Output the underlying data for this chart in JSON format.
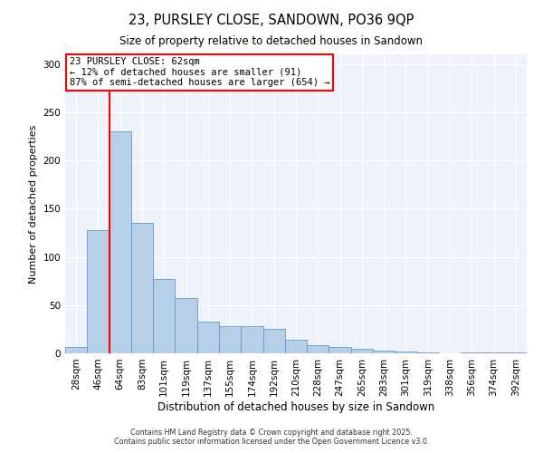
{
  "title_line1": "23, PURSLEY CLOSE, SANDOWN, PO36 9QP",
  "title_line2": "Size of property relative to detached houses in Sandown",
  "xlabel": "Distribution of detached houses by size in Sandown",
  "ylabel": "Number of detached properties",
  "categories": [
    "28sqm",
    "46sqm",
    "64sqm",
    "83sqm",
    "101sqm",
    "119sqm",
    "137sqm",
    "155sqm",
    "174sqm",
    "192sqm",
    "210sqm",
    "228sqm",
    "247sqm",
    "265sqm",
    "283sqm",
    "301sqm",
    "319sqm",
    "338sqm",
    "356sqm",
    "374sqm",
    "392sqm"
  ],
  "values": [
    7,
    128,
    230,
    135,
    77,
    57,
    33,
    28,
    28,
    25,
    14,
    8,
    7,
    5,
    3,
    2,
    1,
    0,
    1,
    1,
    1
  ],
  "bar_color": "#b8cfe8",
  "bar_edge_color": "#6699cc",
  "annotation_text_line1": "23 PURSLEY CLOSE: 62sqm",
  "annotation_text_line2": "← 12% of detached houses are smaller (91)",
  "annotation_text_line3": "87% of semi-detached houses are larger (654) →",
  "annotation_box_color": "white",
  "annotation_box_edge_color": "red",
  "vline_color": "red",
  "vline_x": 1.5,
  "footer_line1": "Contains HM Land Registry data © Crown copyright and database right 2025.",
  "footer_line2": "Contains public sector information licensed under the Open Government Licence v3.0.",
  "ylim": [
    0,
    310
  ],
  "figsize": [
    6.0,
    5.0
  ],
  "dpi": 100,
  "background_color": "#eef2fb"
}
